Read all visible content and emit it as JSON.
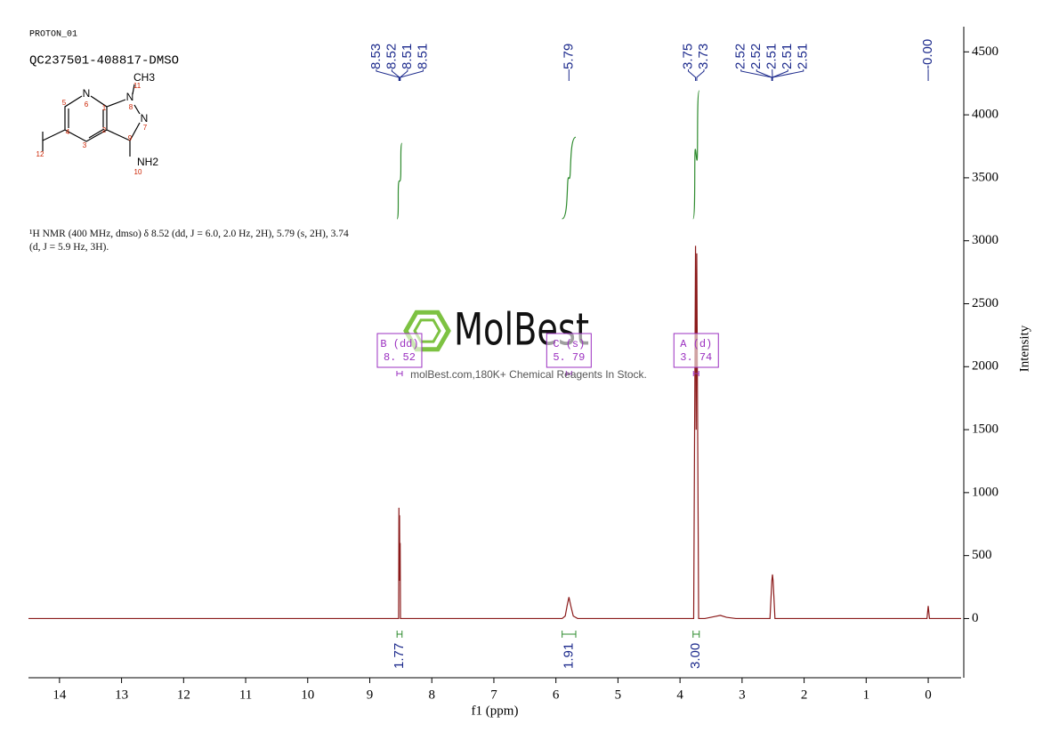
{
  "header": {
    "experiment": "PROTON_01",
    "sample": "QC237501-408817-DMSO"
  },
  "structure": {
    "atoms": [
      "N",
      "N",
      "N",
      "CH3",
      "NH2"
    ],
    "numbers": [
      1,
      2,
      3,
      4,
      5,
      6,
      7,
      8,
      9,
      10,
      11,
      12
    ]
  },
  "description": "¹H NMR (400 MHz, dmso) δ 8.52 (dd, J = 6.0, 2.0 Hz, 2H), 5.79 (s, 2H), 3.74 (d, J = 5.9 Hz, 3H).",
  "watermark": {
    "brand": "MolBest",
    "tagline": "molBest.com,180K+ Chemical Reagents In Stock."
  },
  "chart_data": {
    "type": "line",
    "x_label": "f1 (ppm)",
    "y_label": "Intensity",
    "xlim": [
      14.5,
      -0.53
    ],
    "ylim": [
      -470,
      4700
    ],
    "xticks": [
      14,
      13,
      12,
      11,
      10,
      9,
      8,
      7,
      6,
      5,
      4,
      3,
      2,
      1,
      0
    ],
    "yticks": [
      0,
      500,
      1000,
      1500,
      2000,
      2500,
      3000,
      3500,
      4000,
      4500
    ],
    "x": [
      14.5,
      8.56,
      8.535,
      8.53,
      8.525,
      8.52,
      8.515,
      8.51,
      8.505,
      8.48,
      5.9,
      5.85,
      5.82,
      5.79,
      5.76,
      5.72,
      5.65,
      3.78,
      3.75,
      3.74,
      3.73,
      3.7,
      3.6,
      3.45,
      3.35,
      3.25,
      3.1,
      2.55,
      2.52,
      2.51,
      2.5,
      2.47,
      0.02,
      0,
      -0.02,
      -0.53
    ],
    "series": [
      {
        "color": "#8b1a1a",
        "values": [
          0,
          0,
          0,
          880,
          300,
          820,
          300,
          600,
          0,
          0,
          0,
          20,
          100,
          170,
          100,
          20,
          0,
          0,
          2960,
          1500,
          2900,
          0,
          0,
          15,
          25,
          10,
          0,
          0,
          300,
          350,
          300,
          0,
          0,
          100,
          0,
          0
        ]
      }
    ],
    "peak_labels": [
      {
        "peaks": [
          8.53,
          8.52,
          8.51,
          8.51
        ]
      },
      {
        "peaks": [
          5.79
        ]
      },
      {
        "peaks": [
          3.75,
          3.73
        ]
      },
      {
        "peaks": [
          2.52,
          2.52,
          2.51,
          2.51,
          2.51
        ]
      },
      {
        "peaks": [
          {
            "value": 0,
            "label": "-0.00"
          }
        ]
      }
    ],
    "peak_label_color": "#1c2a8c",
    "integrals": [
      {
        "range": [
          8.56,
          8.48
        ],
        "value": 1.77
      },
      {
        "range": [
          5.9,
          5.68
        ],
        "value": 1.91
      },
      {
        "range": [
          3.79,
          3.69
        ],
        "value": {
          "value": 3,
          "label": "3.00"
        }
      }
    ],
    "integral_color": "#2e8b2e",
    "multiplets": [
      {
        "name": "B (dd)",
        "shift": {
          "value": 8.52,
          "label": "8. 52"
        }
      },
      {
        "name": "C (s)",
        "shift": {
          "value": 5.79,
          "label": "5. 79"
        }
      },
      {
        "name": "A (d)",
        "shift": {
          "value": 3.74,
          "label": "3. 74"
        }
      }
    ],
    "multiplet_color": "#9b30c0"
  }
}
